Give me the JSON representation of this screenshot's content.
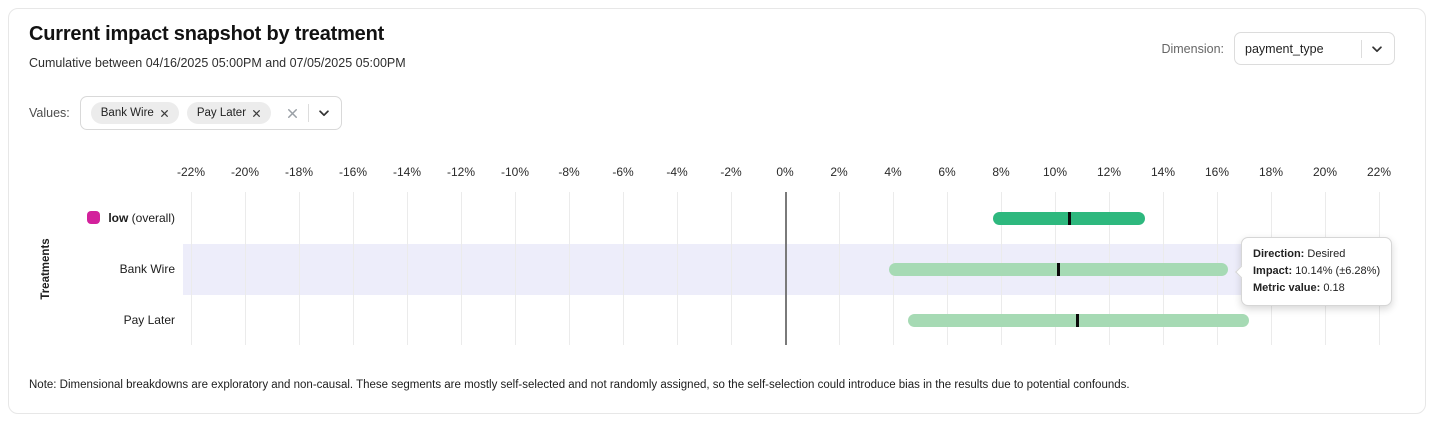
{
  "header": {
    "title": "Current impact snapshot by treatment",
    "subtitle": "Cumulative between 04/16/2025 05:00PM and 07/05/2025 05:00PM",
    "dimension_label": "Dimension:",
    "dimension_value": "payment_type"
  },
  "filters": {
    "values_label": "Values:",
    "chips": [
      "Bank Wire",
      "Pay Later"
    ],
    "icons": {
      "chip_remove": "x-icon",
      "clear_values": "x-icon",
      "values_expand": "chevron-down-icon",
      "dimension_expand": "chevron-down-icon"
    }
  },
  "chart_data": {
    "type": "bar",
    "orientation": "horizontal",
    "ylabel": "Treatments",
    "xlim": [
      -23,
      23
    ],
    "x_tick_unit": "%",
    "x_ticks": [
      -22,
      -20,
      -18,
      -16,
      -14,
      -12,
      -10,
      -8,
      -6,
      -4,
      -2,
      0,
      2,
      4,
      6,
      8,
      10,
      12,
      14,
      16,
      18,
      20,
      22
    ],
    "grid": true,
    "rows": [
      {
        "label": "low",
        "label_suffix": "(overall)",
        "swatch_color": "#d3219c",
        "bar_color": "#2eb87e",
        "low": 7.7,
        "mid": 10.55,
        "high": 13.35,
        "highlighted": false
      },
      {
        "label": "Bank Wire",
        "label_suffix": "",
        "swatch_color": "",
        "bar_color": "#a6dab4",
        "low": 3.86,
        "mid": 10.14,
        "high": 16.42,
        "highlighted": true
      },
      {
        "label": "Pay Later",
        "label_suffix": "",
        "swatch_color": "",
        "bar_color": "#a6dab4",
        "low": 4.57,
        "mid": 10.85,
        "high": 17.2,
        "highlighted": false
      }
    ]
  },
  "tooltip": {
    "direction_label": "Direction:",
    "direction_value": "Desired",
    "impact_label": "Impact:",
    "impact_value": "10.14% (±6.28%)",
    "metric_label": "Metric value:",
    "metric_value": "0.18"
  },
  "note": "Note: Dimensional breakdowns are exploratory and non-causal. These segments are mostly self-selected and not randomly assigned, so the self-selection could introduce bias in the results due to potential confounds."
}
